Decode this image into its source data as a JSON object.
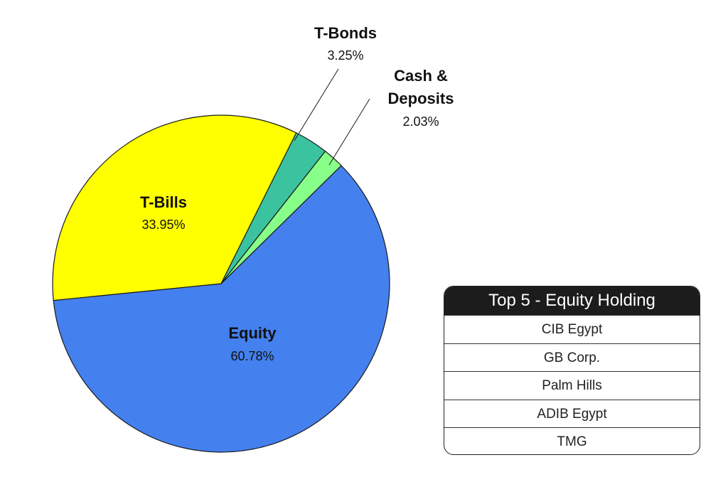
{
  "chart_data": {
    "type": "pie",
    "slices": [
      {
        "label": "Equity",
        "value": 60.78,
        "value_label": "60.78%",
        "color": "#4480EE"
      },
      {
        "label": "T-Bills",
        "value": 33.95,
        "value_label": "33.95%",
        "color": "#FFFF00"
      },
      {
        "label": "T-Bonds",
        "value": 3.25,
        "value_label": "3.25%",
        "color": "#3BC3A0"
      },
      {
        "label": "Cash & Deposits",
        "value": 2.03,
        "value_label": "2.03%",
        "color": "#88FF88"
      }
    ],
    "callout_labels": {
      "t_bonds": {
        "name": "T-Bonds",
        "value": "3.25%"
      },
      "cash_line1": "Cash &",
      "cash_line2": "Deposits",
      "cash_value": "2.03%"
    }
  },
  "holdings_table": {
    "title": "Top 5 - Equity Holding",
    "rows": [
      "CIB Egypt",
      "GB Corp.",
      "Palm Hills",
      "ADIB Egypt",
      "TMG"
    ]
  }
}
